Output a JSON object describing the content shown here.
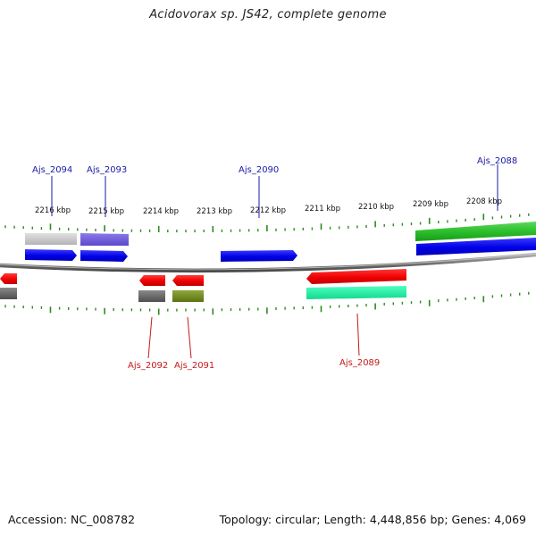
{
  "title": "Acidovorax sp. JS42, complete genome",
  "accession": "Accession: NC_008782",
  "summary": "Topology: circular; Length: 4,448,856 bp; Genes: 4,069",
  "colors": {
    "backbone": "#7f7f7f",
    "tick": "#2e8b20",
    "plus_label": "#1a1aa6",
    "minus_label": "#c41a1a"
  },
  "kbp_ticks": [
    {
      "label": "2216 kbp"
    },
    {
      "label": "2215 kbp"
    },
    {
      "label": "2214 kbp"
    },
    {
      "label": "2213 kbp"
    },
    {
      "label": "2212 kbp"
    },
    {
      "label": "2211 kbp"
    },
    {
      "label": "2210 kbp"
    },
    {
      "label": "2209 kbp"
    },
    {
      "label": "2208 kbp"
    }
  ],
  "plus_genes": [
    {
      "name": "Ajs_2094"
    },
    {
      "name": "Ajs_2093"
    },
    {
      "name": "Ajs_2090"
    },
    {
      "name": "Ajs_2088"
    }
  ],
  "minus_genes": [
    {
      "name": "Ajs_2092"
    },
    {
      "name": "Ajs_2091"
    },
    {
      "name": "Ajs_2089"
    }
  ]
}
